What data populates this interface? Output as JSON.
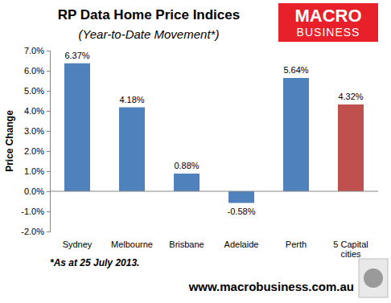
{
  "chart_data": {
    "type": "bar",
    "title": "RP Data Home Price Indices",
    "subtitle": "(Year-to-Date Movement*)",
    "y_label": "Price Change",
    "footnote": "*As at 25 July 2013.",
    "source": "www.macrobusiness.com.au",
    "logo_text": [
      "MACRO",
      "BUSINESS"
    ],
    "categories": [
      "Sydney",
      "Melbourne",
      "Brisbane",
      "Adelaide",
      "Perth",
      "5 Capital cities"
    ],
    "values": [
      6.37,
      4.18,
      0.88,
      -0.58,
      5.64,
      4.32
    ],
    "value_labels": [
      "6.37%",
      "4.18%",
      "0.88%",
      "-0.58%",
      "5.64%",
      "4.32%"
    ],
    "colors": [
      "#4f81bd",
      "#4f81bd",
      "#4f81bd",
      "#4f81bd",
      "#4f81bd",
      "#c0504d"
    ],
    "ylim": [
      -2,
      7
    ],
    "yticks": [
      {
        "value": -2,
        "label": "-2.0%"
      },
      {
        "value": -1,
        "label": "-1.0%"
      },
      {
        "value": 0,
        "label": "0.0%"
      },
      {
        "value": 1,
        "label": "1.0%"
      },
      {
        "value": 2,
        "label": "2.0%"
      },
      {
        "value": 3,
        "label": "3.0%"
      },
      {
        "value": 4,
        "label": "4.0%"
      },
      {
        "value": 5,
        "label": "5.0%"
      },
      {
        "value": 6,
        "label": "6.0%"
      },
      {
        "value": 7,
        "label": "7.0%"
      }
    ],
    "grid": false,
    "data_labels": true
  }
}
